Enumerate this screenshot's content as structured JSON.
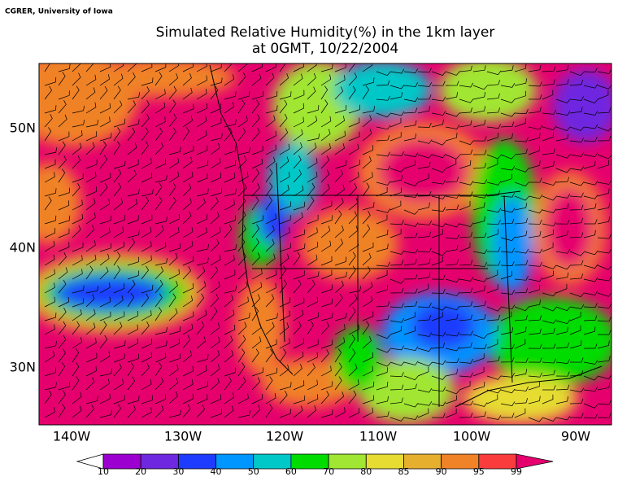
{
  "header": {
    "credit": "CGRER, University of Iowa",
    "title_lines": [
      "Simulated Relative Humidity(%) in the 1km layer",
      "at 0GMT, 10/22/2004"
    ]
  },
  "map": {
    "lat_labels": [
      "50N",
      "40N",
      "30N"
    ],
    "lon_labels": [
      "140W",
      "130W",
      "120W",
      "110W",
      "100W",
      "90W"
    ]
  },
  "colorbar": {
    "levels": [
      10,
      20,
      30,
      40,
      50,
      60,
      70,
      80,
      85,
      90,
      95,
      99
    ],
    "colors": [
      "#ffffff",
      "#9b00d0",
      "#6e28e0",
      "#1e3cff",
      "#0096ff",
      "#00c8c8",
      "#00dc00",
      "#a0e632",
      "#e6dc32",
      "#e6af2d",
      "#f08228",
      "#fa3c3c",
      "#e6006e"
    ]
  }
}
